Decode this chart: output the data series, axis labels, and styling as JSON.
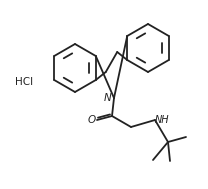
{
  "bg_color": "#ffffff",
  "line_color": "#222222",
  "line_width": 1.3,
  "font_size_label": 7.0,
  "HCl_text": "HCl",
  "N_label": "N",
  "O_label": "O",
  "NH_label": "NH",
  "figsize": [
    2.08,
    1.89
  ],
  "dpi": 100
}
